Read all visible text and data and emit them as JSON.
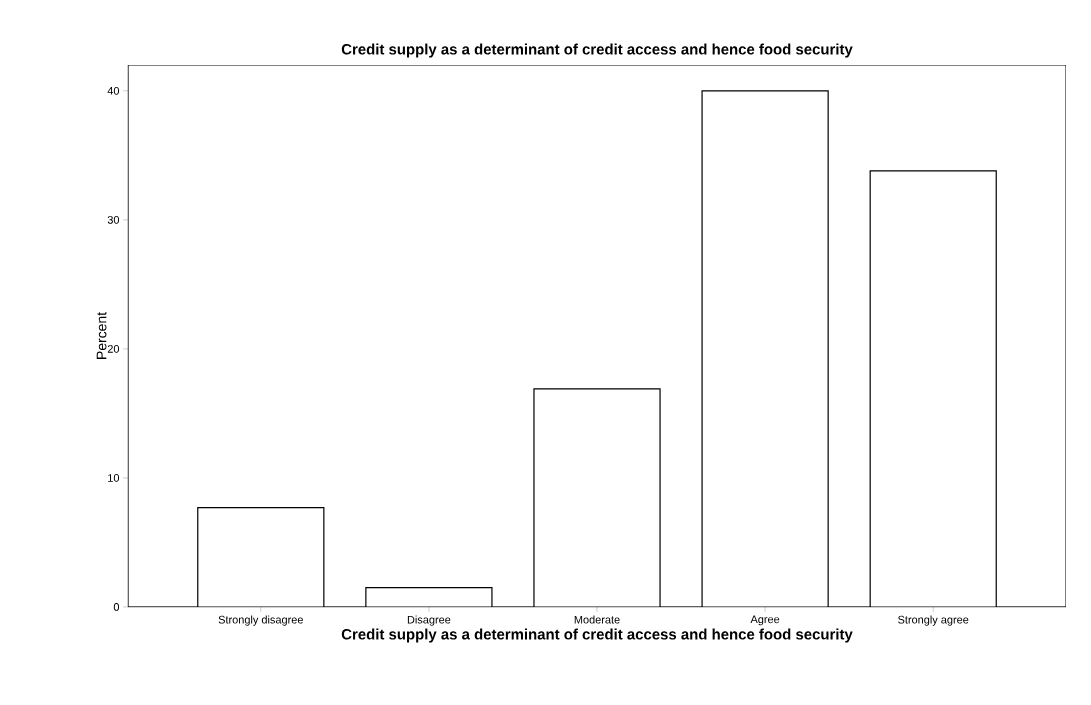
{
  "chart_data": {
    "type": "bar",
    "title": "Credit supply as a determinant of credit access and hence food security",
    "xlabel": "Credit supply as a determinant of credit access and hence food security",
    "ylabel": "Percent",
    "categories": [
      "Strongly disagree",
      "Disagree",
      "Moderate",
      "Agree",
      "Strongly agree"
    ],
    "values": [
      7.7,
      1.5,
      16.9,
      40.0,
      33.8
    ],
    "color": "#ffffff",
    "ylim": [
      0,
      42
    ],
    "yticks": [
      0,
      10,
      20,
      30,
      40
    ]
  }
}
